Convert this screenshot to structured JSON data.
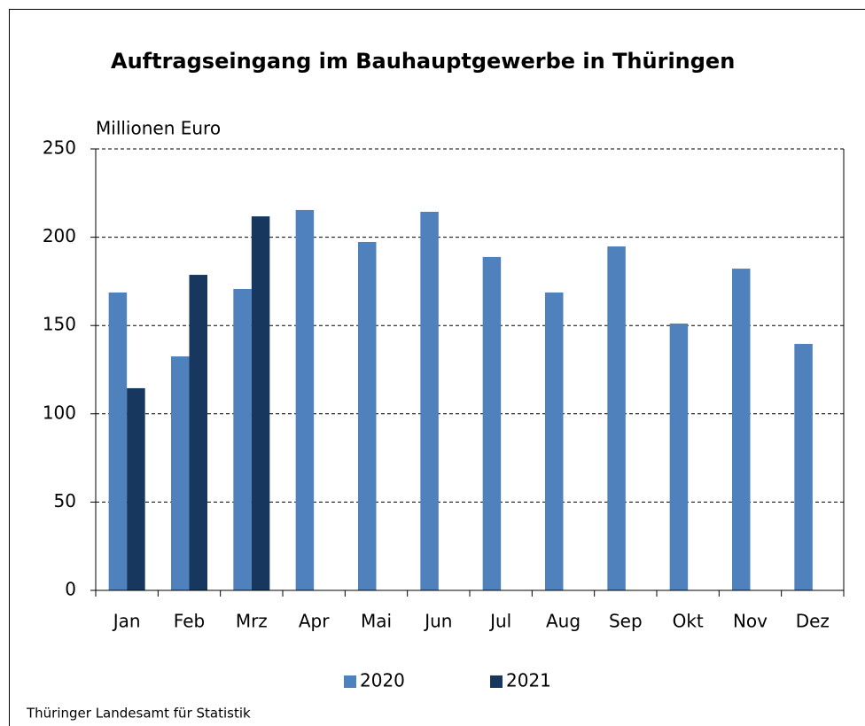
{
  "chart_data": {
    "type": "bar",
    "title": "Auftragseingang im  Bauhauptgewerbe in Thüringen",
    "y_label": "Millionen Euro",
    "source": "Thüringer Landesamt für Statistik",
    "categories": [
      "Jan",
      "Feb",
      "Mrz",
      "Apr",
      "Mai",
      "Jun",
      "Jul",
      "Aug",
      "Sep",
      "Okt",
      "Nov",
      "Dez"
    ],
    "series": [
      {
        "name": "2020",
        "color": "#4f81bd",
        "values": [
          168.7,
          132.5,
          170.7,
          215.4,
          197.3,
          214.4,
          188.8,
          168.7,
          194.8,
          151.1,
          182.2,
          139.6
        ]
      },
      {
        "name": "2021",
        "color": "#17375e",
        "values": [
          114.5,
          178.7,
          211.8,
          null,
          null,
          null,
          null,
          null,
          null,
          null,
          null,
          null
        ]
      }
    ],
    "ylim": [
      0,
      250
    ],
    "yticks": [
      0,
      50,
      100,
      150,
      200,
      250
    ],
    "grid": true,
    "legend": "bottom"
  }
}
